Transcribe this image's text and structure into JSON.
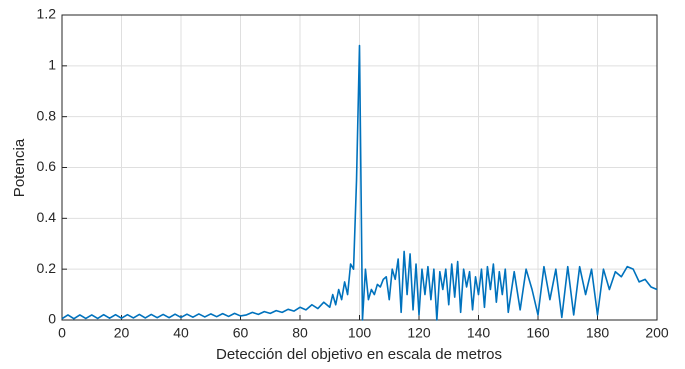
{
  "chart_data": {
    "type": "line",
    "xlabel": "Detección del objetivo en escala de metros",
    "ylabel": "Potencia",
    "xlim": [
      0,
      200
    ],
    "xticks": [
      0,
      20,
      40,
      60,
      80,
      100,
      120,
      140,
      160,
      180,
      200
    ],
    "ylim": [
      0,
      1.2
    ],
    "yticks": [
      0,
      0.2,
      0.4,
      0.6,
      0.8,
      1,
      1.2
    ],
    "grid": true,
    "series": [
      {
        "color": "#0072bd",
        "x": [
          0,
          2,
          4,
          6,
          8,
          10,
          12,
          14,
          16,
          18,
          20,
          22,
          24,
          26,
          28,
          30,
          32,
          34,
          36,
          38,
          40,
          42,
          44,
          46,
          48,
          50,
          52,
          54,
          56,
          58,
          60,
          62,
          64,
          66,
          68,
          70,
          72,
          74,
          76,
          78,
          80,
          82,
          84,
          86,
          88,
          90,
          91,
          92,
          93,
          94,
          95,
          96,
          97,
          98,
          99,
          100,
          101,
          102,
          103,
          104,
          105,
          106,
          107,
          108,
          109,
          110,
          111,
          112,
          113,
          114,
          115,
          116,
          117,
          118,
          119,
          120,
          121,
          122,
          123,
          124,
          125,
          126,
          127,
          128,
          129,
          130,
          131,
          132,
          133,
          134,
          135,
          136,
          137,
          138,
          139,
          140,
          141,
          142,
          143,
          144,
          145,
          146,
          147,
          148,
          149,
          150,
          152,
          154,
          156,
          158,
          160,
          162,
          164,
          166,
          168,
          170,
          172,
          174,
          176,
          178,
          180,
          182,
          184,
          186,
          188,
          190,
          192,
          194,
          196,
          198,
          200
        ],
        "values": [
          0.005,
          0.02,
          0.005,
          0.02,
          0.006,
          0.02,
          0.006,
          0.021,
          0.007,
          0.021,
          0.007,
          0.021,
          0.008,
          0.022,
          0.008,
          0.022,
          0.009,
          0.022,
          0.009,
          0.023,
          0.01,
          0.023,
          0.011,
          0.024,
          0.012,
          0.024,
          0.013,
          0.025,
          0.014,
          0.026,
          0.016,
          0.02,
          0.03,
          0.022,
          0.033,
          0.026,
          0.037,
          0.03,
          0.042,
          0.035,
          0.05,
          0.04,
          0.06,
          0.045,
          0.07,
          0.05,
          0.1,
          0.06,
          0.12,
          0.08,
          0.15,
          0.1,
          0.22,
          0.2,
          0.55,
          1.08,
          0,
          0.2,
          0.08,
          0.12,
          0.1,
          0.14,
          0.13,
          0.16,
          0.17,
          0.08,
          0.2,
          0.16,
          0.24,
          0.03,
          0.27,
          0.1,
          0.26,
          0.04,
          0.22,
          0.02,
          0.2,
          0.1,
          0.21,
          0.08,
          0.2,
          0,
          0.19,
          0.12,
          0.2,
          0.06,
          0.22,
          0.09,
          0.23,
          0.03,
          0.2,
          0.13,
          0.19,
          0.04,
          0.17,
          0.1,
          0.2,
          0.05,
          0.21,
          0.12,
          0.22,
          0.07,
          0.19,
          0.1,
          0.2,
          0.03,
          0.19,
          0.04,
          0.2,
          0.12,
          0.02,
          0.21,
          0.08,
          0.2,
          0.01,
          0.21,
          0.02,
          0.21,
          0.1,
          0.2,
          0.02,
          0.2,
          0.12,
          0.19,
          0.17,
          0.21,
          0.2,
          0.15,
          0.16,
          0.13,
          0.12
        ]
      }
    ]
  }
}
